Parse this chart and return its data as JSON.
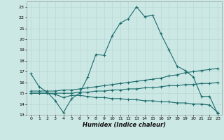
{
  "xlabel": "Humidex (Indice chaleur)",
  "xlim": [
    -0.5,
    23.5
  ],
  "ylim": [
    13,
    23.5
  ],
  "yticks": [
    13,
    14,
    15,
    16,
    17,
    18,
    19,
    20,
    21,
    22,
    23
  ],
  "xticks": [
    0,
    1,
    2,
    3,
    4,
    5,
    6,
    7,
    8,
    9,
    10,
    11,
    12,
    13,
    14,
    15,
    16,
    17,
    18,
    19,
    20,
    21,
    22,
    23
  ],
  "bg_color": "#cce8e5",
  "line_color": "#1a6b6b",
  "grid_color": "#b8d8d4",
  "lines": [
    {
      "x": [
        0,
        1,
        2,
        3,
        4,
        5,
        6,
        7,
        8,
        9,
        10,
        11,
        12,
        13,
        14,
        15,
        16,
        17,
        18,
        19,
        20,
        21,
        22,
        23
      ],
      "y": [
        16.8,
        15.6,
        15.1,
        14.3,
        13.2,
        14.5,
        15.0,
        16.5,
        18.6,
        18.5,
        20.3,
        21.5,
        21.9,
        23.0,
        22.1,
        22.2,
        20.5,
        19.0,
        17.5,
        17.1,
        16.5,
        14.7,
        14.7,
        13.1
      ]
    },
    {
      "x": [
        0,
        1,
        2,
        3,
        4,
        5,
        6,
        7,
        8,
        9,
        10,
        11,
        12,
        13,
        14,
        15,
        16,
        17,
        18,
        19,
        20,
        21,
        22,
        23
      ],
      "y": [
        15.2,
        15.2,
        15.2,
        15.2,
        15.3,
        15.3,
        15.4,
        15.5,
        15.6,
        15.7,
        15.8,
        15.9,
        16.0,
        16.1,
        16.2,
        16.3,
        16.4,
        16.6,
        16.7,
        16.9,
        17.0,
        17.1,
        17.2,
        17.3
      ]
    },
    {
      "x": [
        0,
        1,
        2,
        3,
        4,
        5,
        6,
        7,
        8,
        9,
        10,
        11,
        12,
        13,
        14,
        15,
        16,
        17,
        18,
        19,
        20,
        21,
        22,
        23
      ],
      "y": [
        15.0,
        15.0,
        15.0,
        15.0,
        15.0,
        15.0,
        15.1,
        15.1,
        15.2,
        15.2,
        15.3,
        15.3,
        15.4,
        15.4,
        15.5,
        15.5,
        15.6,
        15.7,
        15.7,
        15.8,
        15.8,
        15.9,
        15.9,
        16.0
      ]
    },
    {
      "x": [
        0,
        1,
        2,
        3,
        4,
        5,
        6,
        7,
        8,
        9,
        10,
        11,
        12,
        13,
        14,
        15,
        16,
        17,
        18,
        19,
        20,
        21,
        22,
        23
      ],
      "y": [
        15.0,
        15.0,
        15.0,
        14.9,
        14.6,
        14.8,
        14.8,
        14.7,
        14.6,
        14.6,
        14.5,
        14.5,
        14.4,
        14.4,
        14.3,
        14.3,
        14.2,
        14.2,
        14.1,
        14.1,
        14.0,
        14.0,
        13.9,
        13.2
      ]
    }
  ]
}
